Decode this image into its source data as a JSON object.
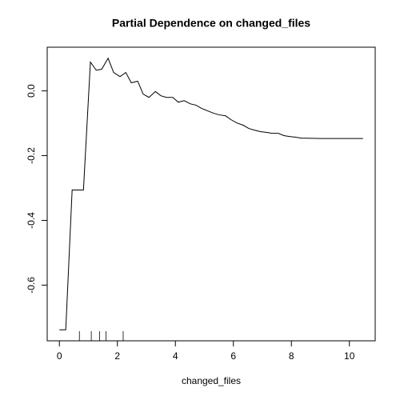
{
  "chart_data": {
    "type": "line",
    "title": "Partial Dependence on changed_files",
    "xlabel": "changed_files",
    "x": [
      0,
      0.22,
      0.44,
      0.83,
      1.07,
      1.27,
      1.46,
      1.68,
      1.87,
      2.09,
      2.29,
      2.48,
      2.7,
      2.89,
      3.09,
      3.31,
      3.5,
      3.69,
      3.91,
      4.1,
      4.3,
      4.52,
      4.71,
      4.9,
      5.12,
      5.32,
      5.51,
      5.73,
      5.92,
      6.12,
      6.34,
      6.53,
      6.72,
      6.94,
      7.13,
      7.33,
      7.55,
      7.74,
      7.93,
      8.15,
      8.35,
      8.54,
      9.0,
      9.5,
      10.0,
      10.47
    ],
    "values": [
      -0.738,
      -0.738,
      -0.306,
      -0.306,
      0.089,
      0.064,
      0.067,
      0.101,
      0.057,
      0.044,
      0.057,
      0.025,
      0.03,
      -0.01,
      -0.02,
      -0.002,
      -0.015,
      -0.02,
      -0.02,
      -0.035,
      -0.03,
      -0.04,
      -0.044,
      -0.054,
      -0.062,
      -0.069,
      -0.074,
      -0.077,
      -0.089,
      -0.099,
      -0.106,
      -0.116,
      -0.121,
      -0.126,
      -0.128,
      -0.131,
      -0.131,
      -0.138,
      -0.141,
      -0.143,
      -0.146,
      -0.146,
      -0.147,
      -0.147,
      -0.147,
      -0.147
    ],
    "color": "#000000",
    "rug": [
      0.69,
      1.1,
      1.39,
      1.61,
      2.2
    ],
    "xlim": [
      -0.42,
      10.89
    ],
    "ylim": [
      -0.772,
      0.135
    ],
    "xticks": [
      0,
      2,
      4,
      6,
      8,
      10
    ],
    "yticks": [
      {
        "value": 0,
        "label": "0.0"
      },
      -0.2,
      -0.4,
      -0.6
    ]
  }
}
